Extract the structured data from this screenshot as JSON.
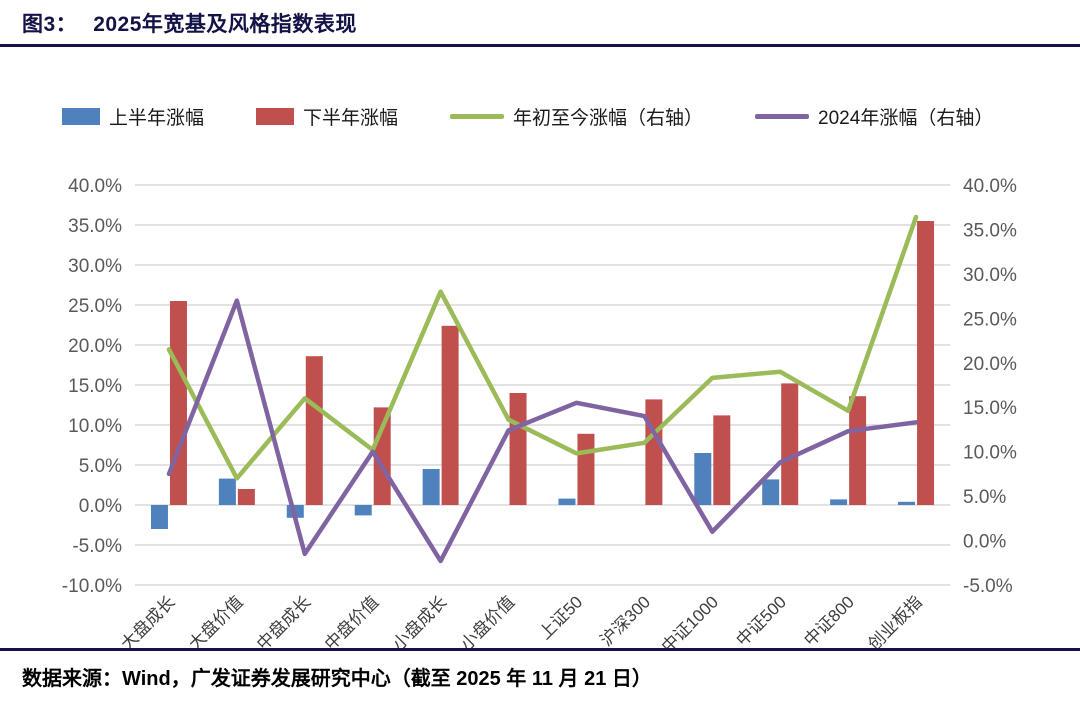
{
  "figure": {
    "label": "图3：",
    "title": "2025年宽基及风格指数表现",
    "source": "数据来源：Wind，广发证券发展研究中心（截至 2025 年 11 月 21 日）"
  },
  "chart_data": {
    "type": "bar",
    "title": "2025年宽基及风格指数表现",
    "categories": [
      "大盘成长",
      "大盘价值",
      "中盘成长",
      "中盘价值",
      "小盘成长",
      "小盘价值",
      "上证50",
      "沪深300",
      "中证1000",
      "中证500",
      "中证800",
      "创业板指"
    ],
    "series": [
      {
        "name": "上半年涨幅",
        "type": "bar",
        "axis": "left",
        "color": "#4F81BD",
        "values": [
          -3.0,
          3.3,
          -1.6,
          -1.3,
          4.5,
          0.0,
          0.8,
          0.0,
          6.5,
          3.2,
          0.7,
          0.4
        ]
      },
      {
        "name": "下半年涨幅",
        "type": "bar",
        "axis": "left",
        "color": "#C0504D",
        "values": [
          25.5,
          2.0,
          18.6,
          12.2,
          22.4,
          14.0,
          8.9,
          13.2,
          11.2,
          15.2,
          13.6,
          35.5
        ]
      },
      {
        "name": "年初至今涨幅（右轴）",
        "type": "line",
        "axis": "right",
        "color": "#9BBB59",
        "values": [
          21.5,
          7.0,
          16.0,
          10.2,
          28.0,
          13.6,
          9.8,
          11.0,
          18.3,
          19.0,
          14.6,
          36.4
        ]
      },
      {
        "name": "2024年涨幅（右轴）",
        "type": "line",
        "axis": "right",
        "color": "#8064A2",
        "values": [
          7.5,
          27.0,
          -1.5,
          10.0,
          -2.3,
          12.4,
          15.5,
          14.0,
          1.0,
          8.8,
          12.3,
          13.3
        ]
      }
    ],
    "left_axis": {
      "min": -10,
      "max": 40,
      "step": 5,
      "ticks": [
        "40.0%",
        "35.0%",
        "30.0%",
        "25.0%",
        "20.0%",
        "15.0%",
        "10.0%",
        "5.0%",
        "0.0%",
        "-5.0%",
        "-10.0%"
      ]
    },
    "right_axis": {
      "min": -5,
      "max": 40,
      "step": 5,
      "ticks": [
        "40.0%",
        "35.0%",
        "30.0%",
        "25.0%",
        "20.0%",
        "15.0%",
        "10.0%",
        "5.0%",
        "0.0%",
        "-5.0%"
      ]
    },
    "grid": true,
    "legend_position": "top",
    "grid_color": "#d9d9d9"
  }
}
